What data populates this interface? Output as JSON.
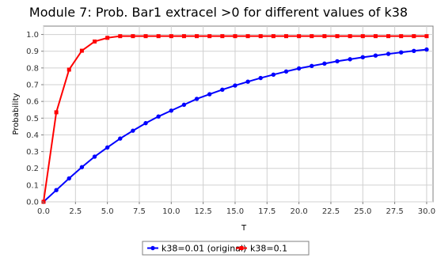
{
  "chart_data": {
    "type": "line",
    "title": "Module 7: Prob. Bar1 extracel >0 for different values of k38",
    "xlabel": "T",
    "ylabel": "Probability",
    "xlim": [
      0,
      30.5
    ],
    "ylim": [
      0,
      1.05
    ],
    "x_ticks": [
      "0.0",
      "2.5",
      "5.0",
      "7.5",
      "10.0",
      "12.5",
      "15.0",
      "17.5",
      "20.0",
      "22.5",
      "25.0",
      "27.5",
      "30.0"
    ],
    "y_ticks": [
      "0.0",
      "0.1",
      "0.2",
      "0.3",
      "0.4",
      "0.5",
      "0.6",
      "0.7",
      "0.8",
      "0.9",
      "1.0"
    ],
    "grid": true,
    "legend_position": "bottom",
    "x": [
      0,
      1,
      2,
      3,
      4,
      5,
      6,
      7,
      8,
      9,
      10,
      11,
      12,
      13,
      14,
      15,
      16,
      17,
      18,
      19,
      20,
      21,
      22,
      23,
      24,
      25,
      26,
      27,
      28,
      29,
      30
    ],
    "series": [
      {
        "name": "k38=0.01 (original)",
        "color": "#0000ff",
        "marker": "circle",
        "values": [
          0.0,
          0.07,
          0.14,
          0.207,
          0.27,
          0.325,
          0.378,
          0.425,
          0.47,
          0.51,
          0.545,
          0.58,
          0.615,
          0.643,
          0.67,
          0.695,
          0.718,
          0.74,
          0.76,
          0.779,
          0.797,
          0.812,
          0.826,
          0.84,
          0.852,
          0.864,
          0.874,
          0.884,
          0.893,
          0.902,
          0.91
        ]
      },
      {
        "name": "k38=0.1",
        "color": "#ff0000",
        "marker": "square",
        "values": [
          0.0,
          0.535,
          0.79,
          0.903,
          0.958,
          0.98,
          0.99,
          0.99,
          0.99,
          0.99,
          0.99,
          0.99,
          0.99,
          0.99,
          0.99,
          0.99,
          0.99,
          0.99,
          0.99,
          0.99,
          0.99,
          0.99,
          0.99,
          0.99,
          0.99,
          0.99,
          0.99,
          0.99,
          0.99,
          0.99,
          0.99
        ]
      }
    ]
  }
}
